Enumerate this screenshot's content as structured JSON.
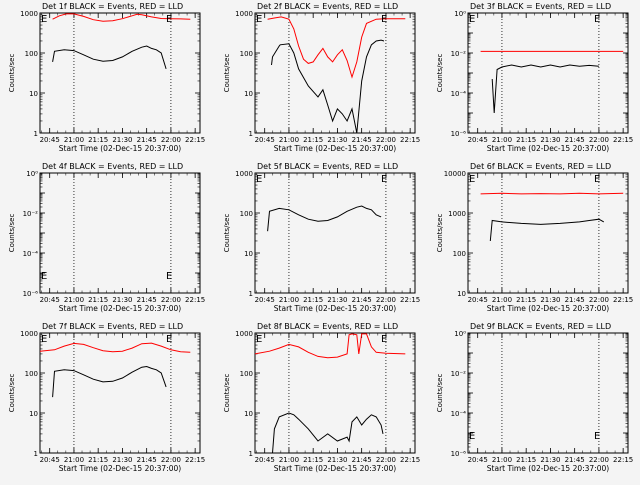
{
  "chart_data": [
    {
      "type": "line",
      "title": "Det 1f BLACK = Events, RED = LLD",
      "xlabel": "Start Time (02-Dec-15 20:37:00)",
      "ylabel": "Counts/sec",
      "yscale": "log",
      "ylim": [
        1,
        1000
      ],
      "yticks": [
        "1",
        "10",
        "100",
        "1000"
      ],
      "xlim": [
        20.65,
        22.3
      ],
      "xticks": [
        "20:45",
        "21:00",
        "21:15",
        "21:30",
        "21:45",
        "22:00",
        "22:15"
      ],
      "markers": [
        "E",
        "E"
      ],
      "vlines": [
        21.0,
        22.0
      ],
      "series": [
        {
          "color": "#ff0000",
          "x": [
            20.78,
            20.85,
            20.92,
            21.0,
            21.1,
            21.2,
            21.3,
            21.4,
            21.5,
            21.6,
            21.65,
            21.7,
            21.8,
            21.9,
            22.0,
            22.1,
            22.2
          ],
          "y": [
            700,
            850,
            950,
            950,
            820,
            680,
            620,
            640,
            720,
            850,
            930,
            900,
            800,
            730,
            720,
            710,
            700
          ]
        },
        {
          "color": "#000000",
          "x": [
            20.78,
            20.8,
            20.9,
            21.0,
            21.1,
            21.2,
            21.3,
            21.4,
            21.5,
            21.6,
            21.7,
            21.75,
            21.8,
            21.85,
            21.9,
            21.95
          ],
          "y": [
            60,
            110,
            120,
            115,
            90,
            70,
            62,
            65,
            80,
            110,
            140,
            150,
            130,
            120,
            100,
            40
          ]
        }
      ]
    },
    {
      "type": "line",
      "title": "Det 2f BLACK = Events, RED = LLD",
      "xlabel": "Start Time (02-Dec-15 20:37:00)",
      "ylabel": "Counts/sec",
      "yscale": "log",
      "ylim": [
        1,
        1000
      ],
      "yticks": [
        "1",
        "10",
        "100",
        "1000"
      ],
      "xlim": [
        20.65,
        22.3
      ],
      "xticks": [
        "20:45",
        "21:00",
        "21:15",
        "21:30",
        "21:45",
        "22:00",
        "22:15"
      ],
      "markers": [
        "E",
        "E"
      ],
      "vlines": [
        21.0,
        22.0
      ],
      "series": [
        {
          "color": "#ff0000",
          "x": [
            20.78,
            20.85,
            20.92,
            21.0,
            21.05,
            21.1,
            21.15,
            21.2,
            21.25,
            21.3,
            21.35,
            21.4,
            21.45,
            21.5,
            21.55,
            21.6,
            21.65,
            21.7,
            21.75,
            21.8,
            21.9,
            22.0,
            22.2
          ],
          "y": [
            700,
            750,
            800,
            700,
            400,
            150,
            70,
            55,
            60,
            90,
            130,
            80,
            60,
            90,
            120,
            65,
            25,
            60,
            250,
            550,
            700,
            720,
            720
          ]
        },
        {
          "color": "#000000",
          "x": [
            20.82,
            20.83,
            20.9,
            20.91,
            21.0,
            21.05,
            21.1,
            21.2,
            21.3,
            21.35,
            21.4,
            21.45,
            21.5,
            21.55,
            21.6,
            21.65,
            21.7,
            21.75,
            21.8,
            21.85,
            21.9,
            21.95,
            21.98
          ],
          "y": [
            50,
            80,
            150,
            160,
            170,
            100,
            40,
            15,
            8,
            12,
            5,
            2,
            4,
            3,
            2,
            4,
            1,
            20,
            80,
            160,
            200,
            210,
            200
          ]
        }
      ]
    },
    {
      "type": "line",
      "title": "Det 3f BLACK = Events, RED = LLD",
      "xlabel": "Start Time (02-Dec-15 20:37:00)",
      "ylabel": "Counts/sec",
      "yscale": "log",
      "ylim": [
        1e-06,
        1.0
      ],
      "yticks": [
        "10⁻⁶",
        "10⁻⁴",
        "10⁻²",
        "10⁰"
      ],
      "xlim": [
        20.65,
        22.3
      ],
      "xticks": [
        "20:45",
        "21:00",
        "21:15",
        "21:30",
        "21:45",
        "22:00",
        "22:15"
      ],
      "markers": [
        "E",
        "E"
      ],
      "vlines": [
        21.0,
        22.0
      ],
      "series": [
        {
          "color": "#ff0000",
          "x": [
            20.78,
            22.25
          ],
          "y": [
            0.012,
            0.012
          ]
        },
        {
          "color": "#000000",
          "x": [
            20.9,
            20.92,
            20.95,
            21.0,
            21.1,
            21.2,
            21.3,
            21.4,
            21.5,
            21.6,
            21.7,
            21.8,
            21.9,
            22.0
          ],
          "y": [
            0.0005,
            1e-05,
            0.0015,
            0.002,
            0.0025,
            0.002,
            0.0025,
            0.002,
            0.0025,
            0.002,
            0.0025,
            0.0022,
            0.0024,
            0.0022
          ]
        }
      ]
    },
    {
      "type": "line",
      "title": "Det 4f BLACK = Events, RED = LLD",
      "xlabel": "Start Time (02-Dec-15 20:37:00)",
      "ylabel": "Counts/sec",
      "yscale": "log",
      "ylim": [
        1e-06,
        1.0
      ],
      "yticks": [
        "10⁻⁶",
        "10⁻⁴",
        "10⁻²",
        "10⁰"
      ],
      "xlim": [
        20.65,
        22.3
      ],
      "xticks": [
        "20:45",
        "21:00",
        "21:15",
        "21:30",
        "21:45",
        "22:00",
        "22:15"
      ],
      "markers": [
        "E",
        "E"
      ],
      "vlines": [
        21.0,
        22.0
      ],
      "series": []
    },
    {
      "type": "line",
      "title": "Det 5f BLACK = Events, RED = LLD",
      "xlabel": "Start Time (02-Dec-15 20:37:00)",
      "ylabel": "Counts/sec",
      "yscale": "log",
      "ylim": [
        1,
        1000
      ],
      "yticks": [
        "1",
        "10",
        "100",
        "1000"
      ],
      "xlim": [
        20.65,
        22.3
      ],
      "xticks": [
        "20:45",
        "21:00",
        "21:15",
        "21:30",
        "21:45",
        "22:00",
        "22:15"
      ],
      "markers": [
        "E",
        "E"
      ],
      "vlines": [
        21.0,
        22.0
      ],
      "series": [
        {
          "color": "#000000",
          "x": [
            20.78,
            20.8,
            20.9,
            21.0,
            21.1,
            21.2,
            21.3,
            21.4,
            21.5,
            21.6,
            21.7,
            21.75,
            21.8,
            21.85,
            21.9,
            21.95
          ],
          "y": [
            35,
            110,
            130,
            120,
            90,
            70,
            62,
            65,
            80,
            110,
            140,
            150,
            130,
            120,
            90,
            80
          ]
        }
      ]
    },
    {
      "type": "line",
      "title": "Det 6f BLACK = Events, RED = LLD",
      "xlabel": "Start Time (02-Dec-15 20:37:00)",
      "ylabel": "Counts/sec",
      "yscale": "log",
      "ylim": [
        10,
        10000
      ],
      "yticks": [
        "10",
        "100",
        "1000",
        "10000"
      ],
      "xlim": [
        20.65,
        22.3
      ],
      "xticks": [
        "20:45",
        "21:00",
        "21:15",
        "21:30",
        "21:45",
        "22:00",
        "22:15"
      ],
      "markers": [
        "E",
        "E"
      ],
      "vlines": [
        21.0,
        22.0
      ],
      "series": [
        {
          "color": "#ff0000",
          "x": [
            20.78,
            21.0,
            21.2,
            21.4,
            21.6,
            21.8,
            22.0,
            22.25
          ],
          "y": [
            3000,
            3100,
            3000,
            3050,
            3000,
            3100,
            3000,
            3100
          ]
        },
        {
          "color": "#000000",
          "x": [
            20.88,
            20.9,
            21.0,
            21.2,
            21.4,
            21.6,
            21.8,
            21.9,
            22.0,
            22.05
          ],
          "y": [
            200,
            650,
            600,
            550,
            520,
            550,
            600,
            650,
            700,
            600
          ]
        }
      ]
    },
    {
      "type": "line",
      "title": "Det 7f BLACK = Events, RED = LLD",
      "xlabel": "Start Time (02-Dec-15 20:37:00)",
      "ylabel": "Counts/sec",
      "yscale": "log",
      "ylim": [
        1,
        1000
      ],
      "yticks": [
        "1",
        "10",
        "100",
        "1000"
      ],
      "xlim": [
        20.65,
        22.3
      ],
      "xticks": [
        "20:45",
        "21:00",
        "21:15",
        "21:30",
        "21:45",
        "22:00",
        "22:15"
      ],
      "markers": [
        "E",
        "E"
      ],
      "vlines": [
        21.0,
        22.0
      ],
      "series": [
        {
          "color": "#ff0000",
          "x": [
            20.65,
            20.8,
            20.9,
            21.0,
            21.1,
            21.2,
            21.3,
            21.4,
            21.5,
            21.6,
            21.7,
            21.8,
            21.9,
            22.0,
            22.1,
            22.2
          ],
          "y": [
            350,
            380,
            470,
            550,
            520,
            430,
            360,
            340,
            350,
            420,
            540,
            560,
            470,
            380,
            340,
            330
          ]
        },
        {
          "color": "#000000",
          "x": [
            20.78,
            20.8,
            20.9,
            21.0,
            21.1,
            21.2,
            21.3,
            21.4,
            21.5,
            21.6,
            21.7,
            21.75,
            21.8,
            21.85,
            21.9,
            21.95
          ],
          "y": [
            25,
            110,
            120,
            115,
            90,
            70,
            60,
            62,
            75,
            105,
            140,
            145,
            130,
            120,
            100,
            45
          ]
        }
      ]
    },
    {
      "type": "line",
      "title": "Det 8f BLACK = Events, RED = LLD",
      "xlabel": "Start Time (02-Dec-15 20:37:00)",
      "ylabel": "Counts/sec",
      "yscale": "log",
      "ylim": [
        1,
        1000
      ],
      "yticks": [
        "1",
        "10",
        "100",
        "1000"
      ],
      "xlim": [
        20.65,
        22.3
      ],
      "xticks": [
        "20:45",
        "21:00",
        "21:15",
        "21:30",
        "21:45",
        "22:00",
        "22:15"
      ],
      "markers": [
        "E",
        "E"
      ],
      "vlines": [
        21.0,
        22.0
      ],
      "series": [
        {
          "color": "#ff0000",
          "x": [
            20.65,
            20.8,
            20.9,
            21.0,
            21.1,
            21.2,
            21.3,
            21.4,
            21.5,
            21.6,
            21.62,
            21.65,
            21.7,
            21.72,
            21.75,
            21.8,
            21.85,
            21.9,
            22.0,
            22.2
          ],
          "y": [
            300,
            350,
            420,
            520,
            450,
            330,
            260,
            240,
            250,
            300,
            900,
            950,
            900,
            300,
            950,
            950,
            450,
            330,
            310,
            300
          ]
        },
        {
          "color": "#000000",
          "x": [
            20.83,
            20.85,
            20.9,
            21.0,
            21.05,
            21.1,
            21.2,
            21.3,
            21.4,
            21.5,
            21.6,
            21.62,
            21.65,
            21.7,
            21.75,
            21.8,
            21.85,
            21.9,
            21.95,
            21.97
          ],
          "y": [
            1,
            4,
            8,
            10,
            9,
            7,
            4,
            2,
            3,
            2,
            2.5,
            2,
            6,
            8,
            5,
            7,
            9,
            8,
            5,
            3
          ]
        }
      ]
    },
    {
      "type": "line",
      "title": "Det 9f BLACK = Events, RED = LLD",
      "xlabel": "Start Time (02-Dec-15 20:37:00)",
      "ylabel": "Counts/sec",
      "yscale": "log",
      "ylim": [
        1e-06,
        1.0
      ],
      "yticks": [
        "10⁻⁶",
        "10⁻⁴",
        "10⁻²",
        "10⁰"
      ],
      "xlim": [
        20.65,
        22.3
      ],
      "xticks": [
        "20:45",
        "21:00",
        "21:15",
        "21:30",
        "21:45",
        "22:00",
        "22:15"
      ],
      "markers": [
        "E",
        "E"
      ],
      "vlines": [
        21.0,
        22.0
      ],
      "series": []
    }
  ]
}
